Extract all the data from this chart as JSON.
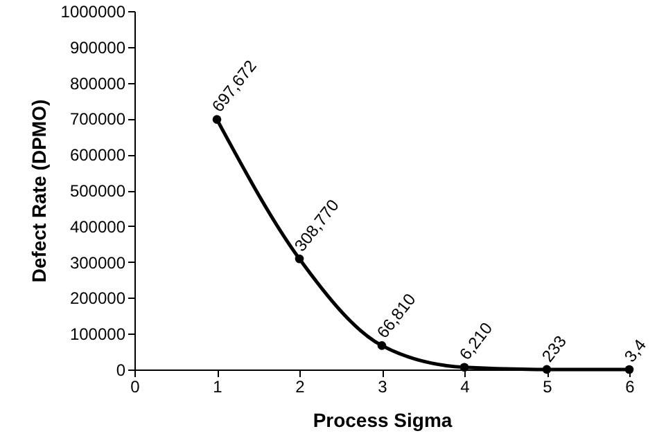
{
  "chart_data": {
    "type": "line",
    "xlabel": "Process Sigma",
    "ylabel": "Defect Rate (DPMO)",
    "x": [
      1,
      2,
      3,
      4,
      5,
      6
    ],
    "series": [
      {
        "color": "#000000",
        "values": [
          697672,
          308770,
          66810,
          6210,
          233,
          3.4
        ],
        "value_labels": [
          "697,672",
          "308,770",
          "66,810",
          "6,210",
          "233",
          "3,4"
        ]
      }
    ],
    "xlim": [
      0,
      6
    ],
    "xticks": [
      0,
      1,
      2,
      3,
      4,
      5,
      6
    ],
    "ylim": [
      0,
      1000000
    ],
    "yticks": [
      0,
      100000,
      200000,
      300000,
      400000,
      500000,
      600000,
      700000,
      800000,
      900000,
      1000000
    ],
    "grid": false,
    "marker": "circle",
    "line_style": "solid"
  }
}
